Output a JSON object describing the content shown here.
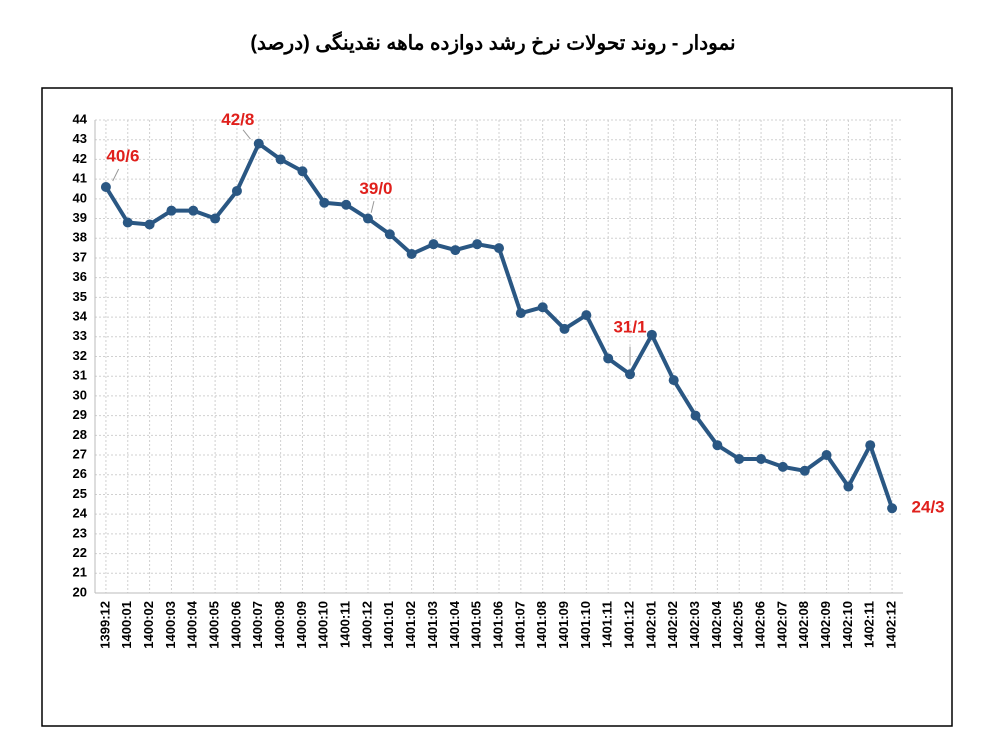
{
  "chart_data": {
    "type": "line",
    "title": "نمودار - روند تحولات نرخ رشد دوازده ماهه نقدینگی (درصد)",
    "categories": [
      "1399:12",
      "1400:01",
      "1400:02",
      "1400:03",
      "1400:04",
      "1400:05",
      "1400:06",
      "1400:07",
      "1400:08",
      "1400:09",
      "1400:10",
      "1400:11",
      "1400:12",
      "1401:01",
      "1401:02",
      "1401:03",
      "1401:04",
      "1401:05",
      "1401:06",
      "1401:07",
      "1401:08",
      "1401:09",
      "1401:10",
      "1401:11",
      "1401:12",
      "1402:01",
      "1402:02",
      "1402:03",
      "1402:04",
      "1402:05",
      "1402:06",
      "1402:07",
      "1402:08",
      "1402:09",
      "1402:10",
      "1402:11",
      "1402:12"
    ],
    "series": [
      {
        "color": "#2a5783",
        "values": [
          40.6,
          38.8,
          38.7,
          39.4,
          39.4,
          39.0,
          40.4,
          42.8,
          42.0,
          41.4,
          39.8,
          39.7,
          39.0,
          38.2,
          37.2,
          37.7,
          37.4,
          37.7,
          37.5,
          34.2,
          34.5,
          33.4,
          34.1,
          31.9,
          31.1,
          33.1,
          30.8,
          29.0,
          27.5,
          26.8,
          26.8,
          26.4,
          26.2,
          27.0,
          25.4,
          27.5,
          24.3
        ],
        "value_labels": [
          "40/6",
          null,
          null,
          null,
          null,
          null,
          null,
          "42/8",
          null,
          null,
          null,
          null,
          "39/0",
          null,
          null,
          null,
          null,
          null,
          null,
          null,
          null,
          null,
          null,
          null,
          "31/1",
          null,
          null,
          null,
          null,
          null,
          null,
          null,
          null,
          null,
          null,
          null,
          "24/3"
        ],
        "label_color": "#e0201c"
      }
    ],
    "ylim": [
      20,
      44
    ],
    "yticks": [
      20,
      21,
      22,
      23,
      24,
      25,
      26,
      27,
      28,
      29,
      30,
      31,
      32,
      33,
      34,
      35,
      36,
      37,
      38,
      39,
      40,
      41,
      42,
      43,
      44
    ],
    "grid": true
  }
}
